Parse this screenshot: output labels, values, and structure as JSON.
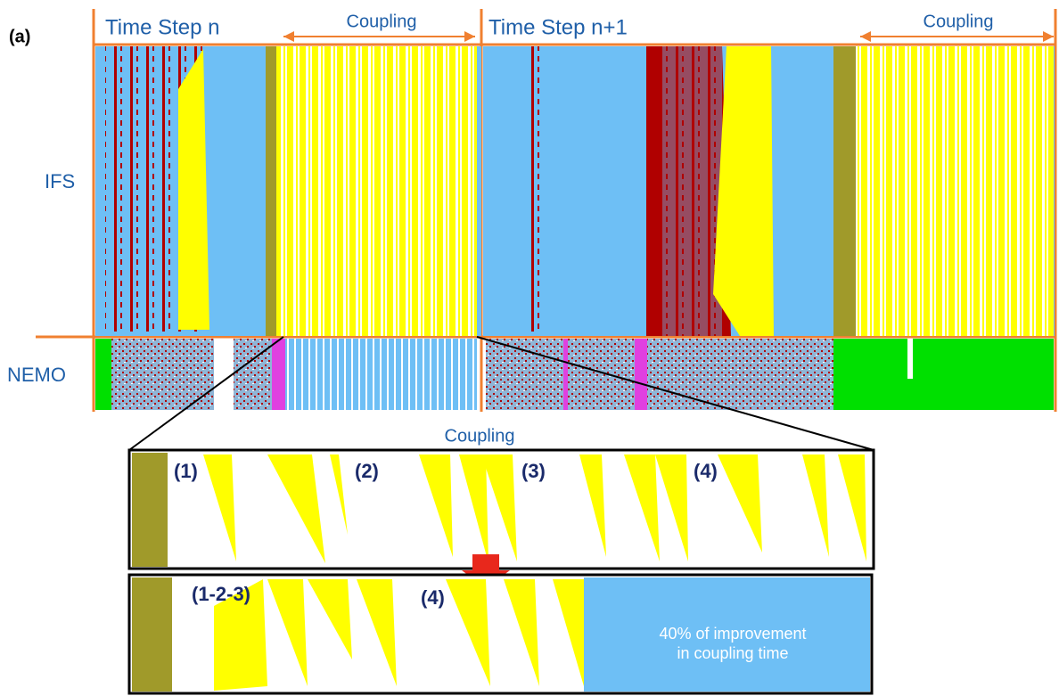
{
  "header": {
    "panel_label": "(a)",
    "step_n": "Time Step n",
    "coupling_n": "Coupling",
    "step_n1": "Time Step n+1",
    "coupling_n1": "Coupling"
  },
  "rows": {
    "ifs": "IFS",
    "nemo": "NEMO"
  },
  "zoom": {
    "title": "Coupling",
    "before": {
      "labels": [
        "(1)",
        "(2)",
        "(3)",
        "(4)"
      ]
    },
    "after": {
      "labels": [
        "(1-2-3)",
        "(4)"
      ],
      "note": [
        "40% of improvement",
        "in coupling time"
      ]
    }
  }
}
